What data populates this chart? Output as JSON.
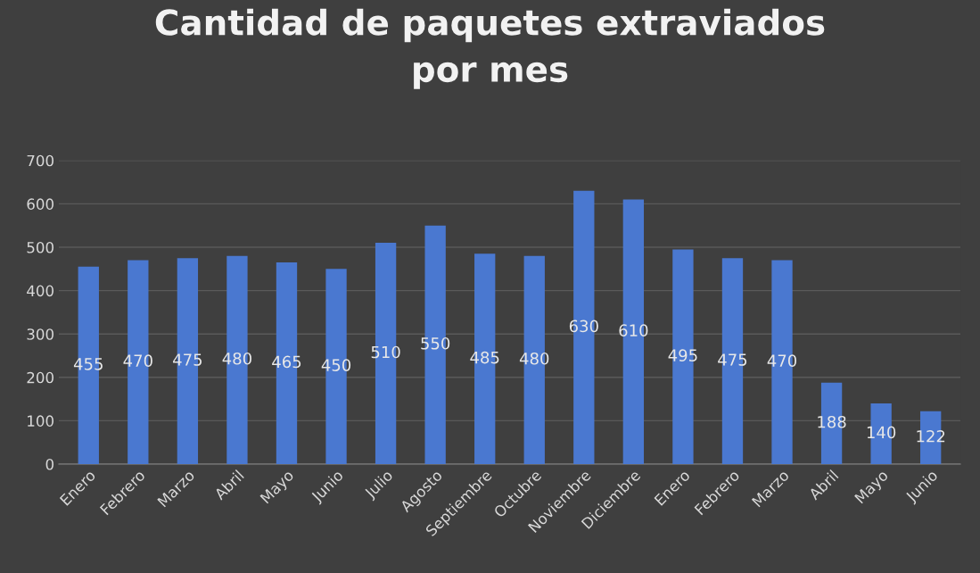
{
  "chart_data": {
    "type": "bar",
    "title": "Cantidad de paquetes extraviados\npor mes",
    "categories": [
      "Enero",
      "Febrero",
      "Marzo",
      "Abril",
      "Mayo",
      "Junio",
      "Julio",
      "Agosto",
      "Septiembre",
      "Octubre",
      "Noviembre",
      "Diciembre",
      "Enero",
      "Febrero",
      "Marzo",
      "Abril",
      "Mayo",
      "Junio"
    ],
    "values": [
      455,
      470,
      475,
      480,
      465,
      450,
      510,
      550,
      485,
      480,
      630,
      610,
      495,
      475,
      470,
      188,
      140,
      122
    ],
    "color": "#4a78d0",
    "ylim": [
      0,
      700
    ],
    "yticks": [
      0,
      100,
      200,
      300,
      400,
      500,
      600,
      700
    ],
    "grid": "y",
    "data_labels": true
  }
}
